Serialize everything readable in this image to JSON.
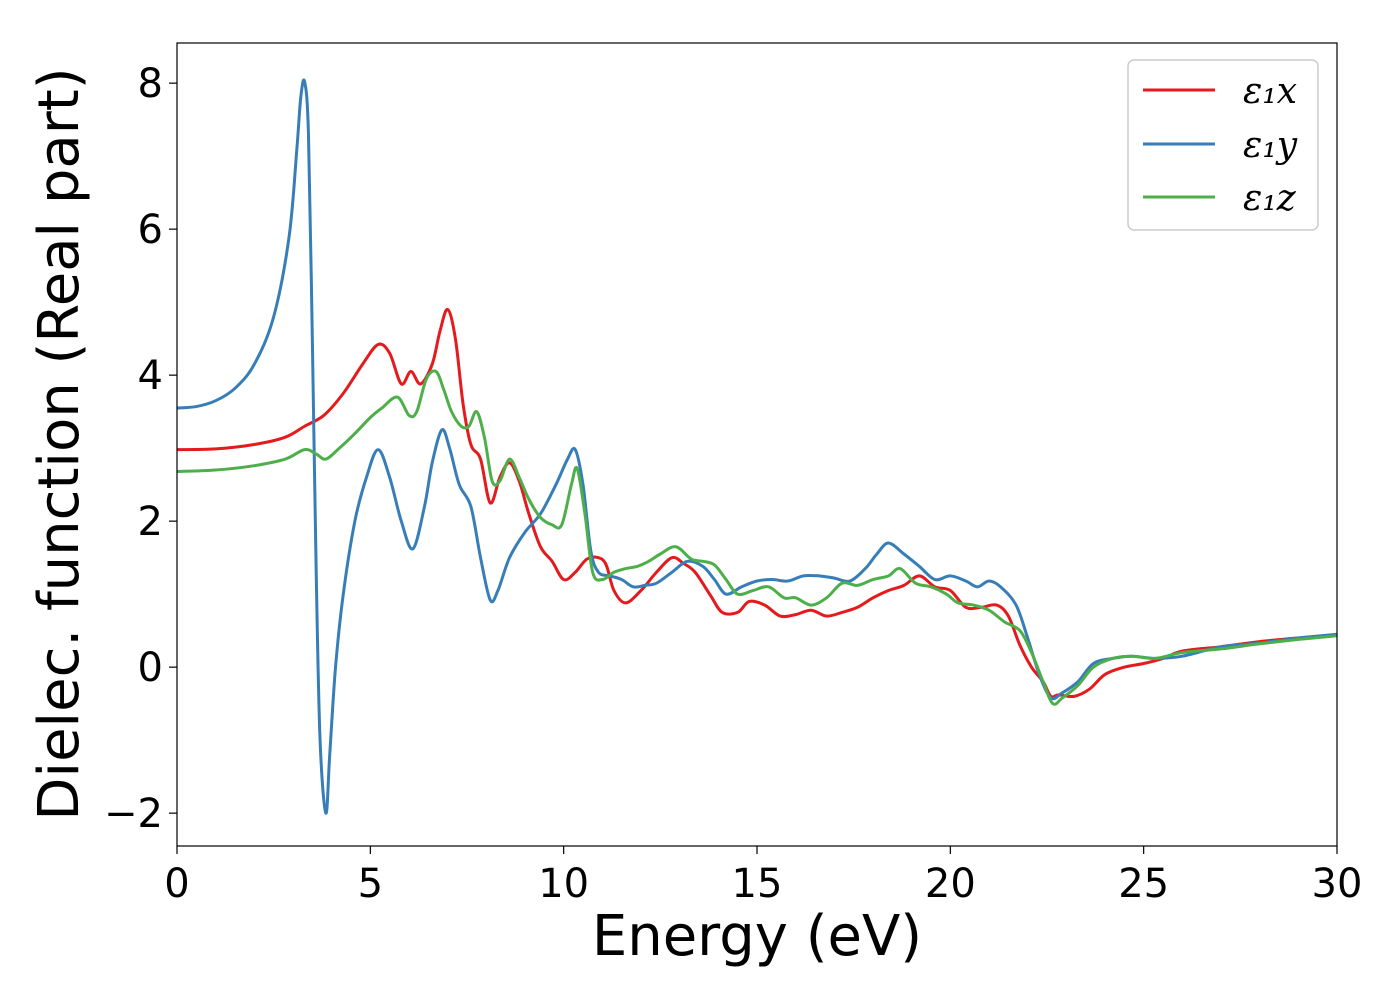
{
  "chart_data": {
    "type": "line",
    "xlabel": "Energy (eV)",
    "ylabel": "Dielec. function (Real part)",
    "xlim": [
      0,
      30
    ],
    "ylim": [
      -2.45,
      8.55
    ],
    "x_ticks": [
      0,
      5,
      10,
      15,
      20,
      25,
      30
    ],
    "x_tick_labels": [
      "0",
      "5",
      "10",
      "15",
      "20",
      "25",
      "30"
    ],
    "y_ticks": [
      -2,
      0,
      2,
      4,
      6,
      8
    ],
    "y_tick_labels": [
      "−2",
      "0",
      "2",
      "4",
      "6",
      "8"
    ],
    "grid": false,
    "legend_position": "top-right",
    "series": [
      {
        "name": "ε₁x",
        "color": "#e41a1c",
        "points": [
          [
            0,
            2.98
          ],
          [
            1,
            2.99
          ],
          [
            2,
            3.05
          ],
          [
            2.8,
            3.15
          ],
          [
            3.3,
            3.3
          ],
          [
            3.8,
            3.45
          ],
          [
            4.3,
            3.75
          ],
          [
            4.8,
            4.15
          ],
          [
            5.2,
            4.42
          ],
          [
            5.5,
            4.3
          ],
          [
            5.8,
            3.88
          ],
          [
            6.05,
            4.05
          ],
          [
            6.3,
            3.88
          ],
          [
            6.6,
            4.15
          ],
          [
            6.8,
            4.6
          ],
          [
            7.0,
            4.9
          ],
          [
            7.2,
            4.5
          ],
          [
            7.4,
            3.6
          ],
          [
            7.6,
            3.05
          ],
          [
            7.85,
            2.85
          ],
          [
            8.1,
            2.25
          ],
          [
            8.35,
            2.6
          ],
          [
            8.6,
            2.8
          ],
          [
            8.85,
            2.55
          ],
          [
            9.1,
            2.1
          ],
          [
            9.4,
            1.65
          ],
          [
            9.7,
            1.45
          ],
          [
            10.0,
            1.2
          ],
          [
            10.3,
            1.3
          ],
          [
            10.6,
            1.48
          ],
          [
            10.9,
            1.5
          ],
          [
            11.1,
            1.4
          ],
          [
            11.3,
            1.05
          ],
          [
            11.6,
            0.88
          ],
          [
            12.0,
            1.05
          ],
          [
            12.4,
            1.3
          ],
          [
            12.8,
            1.5
          ],
          [
            13.1,
            1.42
          ],
          [
            13.4,
            1.3
          ],
          [
            13.8,
            0.98
          ],
          [
            14.1,
            0.75
          ],
          [
            14.5,
            0.75
          ],
          [
            14.8,
            0.9
          ],
          [
            15.2,
            0.85
          ],
          [
            15.6,
            0.7
          ],
          [
            16.0,
            0.72
          ],
          [
            16.4,
            0.78
          ],
          [
            16.8,
            0.7
          ],
          [
            17.2,
            0.75
          ],
          [
            17.6,
            0.82
          ],
          [
            18.0,
            0.95
          ],
          [
            18.4,
            1.05
          ],
          [
            18.8,
            1.12
          ],
          [
            19.2,
            1.25
          ],
          [
            19.6,
            1.1
          ],
          [
            20.0,
            1.05
          ],
          [
            20.4,
            0.82
          ],
          [
            20.8,
            0.82
          ],
          [
            21.2,
            0.85
          ],
          [
            21.5,
            0.7
          ],
          [
            21.8,
            0.3
          ],
          [
            22.1,
            0.0
          ],
          [
            22.4,
            -0.2
          ],
          [
            22.6,
            -0.4
          ],
          [
            22.8,
            -0.38
          ],
          [
            23.2,
            -0.4
          ],
          [
            23.6,
            -0.3
          ],
          [
            24.0,
            -0.1
          ],
          [
            24.5,
            0.0
          ],
          [
            25.0,
            0.05
          ],
          [
            25.5,
            0.12
          ],
          [
            26,
            0.22
          ],
          [
            27,
            0.28
          ],
          [
            28,
            0.35
          ],
          [
            29,
            0.4
          ],
          [
            30,
            0.44
          ]
        ]
      },
      {
        "name": "ε₁y",
        "color": "#377eb8",
        "points": [
          [
            0,
            3.55
          ],
          [
            0.5,
            3.57
          ],
          [
            1.0,
            3.65
          ],
          [
            1.5,
            3.82
          ],
          [
            2.0,
            4.15
          ],
          [
            2.5,
            4.8
          ],
          [
            2.9,
            5.9
          ],
          [
            3.1,
            7.1
          ],
          [
            3.2,
            7.8
          ],
          [
            3.3,
            8.02
          ],
          [
            3.4,
            7.3
          ],
          [
            3.5,
            4.5
          ],
          [
            3.6,
            1.3
          ],
          [
            3.7,
            -1.0
          ],
          [
            3.85,
            -2.0
          ],
          [
            3.95,
            -1.2
          ],
          [
            4.1,
            0.0
          ],
          [
            4.3,
            1.0
          ],
          [
            4.6,
            2.0
          ],
          [
            4.9,
            2.6
          ],
          [
            5.2,
            2.98
          ],
          [
            5.5,
            2.6
          ],
          [
            5.8,
            2.0
          ],
          [
            6.1,
            1.62
          ],
          [
            6.4,
            2.2
          ],
          [
            6.6,
            2.8
          ],
          [
            6.85,
            3.25
          ],
          [
            7.05,
            3.0
          ],
          [
            7.3,
            2.5
          ],
          [
            7.6,
            2.2
          ],
          [
            7.85,
            1.5
          ],
          [
            8.1,
            0.92
          ],
          [
            8.3,
            1.05
          ],
          [
            8.6,
            1.5
          ],
          [
            9.0,
            1.85
          ],
          [
            9.4,
            2.1
          ],
          [
            9.8,
            2.5
          ],
          [
            10.1,
            2.85
          ],
          [
            10.3,
            2.98
          ],
          [
            10.5,
            2.5
          ],
          [
            10.7,
            1.6
          ],
          [
            10.9,
            1.3
          ],
          [
            11.2,
            1.25
          ],
          [
            11.5,
            1.2
          ],
          [
            11.8,
            1.1
          ],
          [
            12.1,
            1.12
          ],
          [
            12.4,
            1.15
          ],
          [
            12.8,
            1.3
          ],
          [
            13.2,
            1.45
          ],
          [
            13.6,
            1.38
          ],
          [
            13.9,
            1.2
          ],
          [
            14.2,
            1.0
          ],
          [
            14.6,
            1.1
          ],
          [
            15.0,
            1.18
          ],
          [
            15.4,
            1.2
          ],
          [
            15.8,
            1.18
          ],
          [
            16.2,
            1.25
          ],
          [
            16.6,
            1.25
          ],
          [
            17.0,
            1.22
          ],
          [
            17.4,
            1.18
          ],
          [
            17.8,
            1.35
          ],
          [
            18.1,
            1.55
          ],
          [
            18.4,
            1.7
          ],
          [
            18.8,
            1.55
          ],
          [
            19.2,
            1.38
          ],
          [
            19.6,
            1.2
          ],
          [
            20.0,
            1.25
          ],
          [
            20.4,
            1.18
          ],
          [
            20.7,
            1.1
          ],
          [
            21.0,
            1.18
          ],
          [
            21.3,
            1.1
          ],
          [
            21.7,
            0.85
          ],
          [
            22.0,
            0.4
          ],
          [
            22.3,
            -0.1
          ],
          [
            22.6,
            -0.42
          ],
          [
            22.9,
            -0.35
          ],
          [
            23.3,
            -0.2
          ],
          [
            23.7,
            0.05
          ],
          [
            24.2,
            0.12
          ],
          [
            24.7,
            0.15
          ],
          [
            25.3,
            0.12
          ],
          [
            26,
            0.15
          ],
          [
            27,
            0.28
          ],
          [
            28,
            0.33
          ],
          [
            29,
            0.4
          ],
          [
            30,
            0.45
          ]
        ]
      },
      {
        "name": "ε₁z",
        "color": "#4daf4a",
        "points": [
          [
            0,
            2.68
          ],
          [
            1,
            2.7
          ],
          [
            2,
            2.76
          ],
          [
            2.8,
            2.85
          ],
          [
            3.3,
            2.98
          ],
          [
            3.6,
            2.92
          ],
          [
            3.85,
            2.85
          ],
          [
            4.2,
            3.0
          ],
          [
            4.6,
            3.2
          ],
          [
            5.0,
            3.42
          ],
          [
            5.3,
            3.55
          ],
          [
            5.7,
            3.7
          ],
          [
            6.0,
            3.45
          ],
          [
            6.2,
            3.5
          ],
          [
            6.45,
            3.95
          ],
          [
            6.7,
            4.05
          ],
          [
            6.9,
            3.8
          ],
          [
            7.1,
            3.5
          ],
          [
            7.35,
            3.3
          ],
          [
            7.55,
            3.3
          ],
          [
            7.75,
            3.5
          ],
          [
            7.95,
            3.15
          ],
          [
            8.15,
            2.55
          ],
          [
            8.35,
            2.55
          ],
          [
            8.6,
            2.85
          ],
          [
            8.85,
            2.6
          ],
          [
            9.1,
            2.3
          ],
          [
            9.4,
            2.05
          ],
          [
            9.7,
            1.95
          ],
          [
            9.95,
            1.95
          ],
          [
            10.2,
            2.5
          ],
          [
            10.35,
            2.72
          ],
          [
            10.55,
            2.1
          ],
          [
            10.75,
            1.3
          ],
          [
            11.0,
            1.2
          ],
          [
            11.3,
            1.3
          ],
          [
            11.6,
            1.35
          ],
          [
            11.9,
            1.38
          ],
          [
            12.2,
            1.45
          ],
          [
            12.5,
            1.55
          ],
          [
            12.9,
            1.65
          ],
          [
            13.3,
            1.48
          ],
          [
            13.6,
            1.45
          ],
          [
            13.9,
            1.4
          ],
          [
            14.2,
            1.2
          ],
          [
            14.5,
            1.0
          ],
          [
            14.9,
            1.05
          ],
          [
            15.3,
            1.1
          ],
          [
            15.7,
            0.95
          ],
          [
            16.0,
            0.95
          ],
          [
            16.4,
            0.85
          ],
          [
            16.8,
            0.95
          ],
          [
            17.2,
            1.15
          ],
          [
            17.6,
            1.12
          ],
          [
            18.0,
            1.2
          ],
          [
            18.4,
            1.25
          ],
          [
            18.7,
            1.35
          ],
          [
            19.1,
            1.15
          ],
          [
            19.5,
            1.1
          ],
          [
            19.9,
            1.0
          ],
          [
            20.2,
            0.88
          ],
          [
            20.6,
            0.85
          ],
          [
            21.0,
            0.78
          ],
          [
            21.4,
            0.62
          ],
          [
            21.8,
            0.5
          ],
          [
            22.1,
            0.2
          ],
          [
            22.4,
            -0.2
          ],
          [
            22.65,
            -0.5
          ],
          [
            22.9,
            -0.42
          ],
          [
            23.3,
            -0.25
          ],
          [
            23.7,
            0.0
          ],
          [
            24.2,
            0.12
          ],
          [
            24.7,
            0.15
          ],
          [
            25.3,
            0.12
          ],
          [
            26,
            0.2
          ],
          [
            27,
            0.25
          ],
          [
            28,
            0.32
          ],
          [
            29,
            0.38
          ],
          [
            30,
            0.43
          ]
        ]
      }
    ]
  }
}
